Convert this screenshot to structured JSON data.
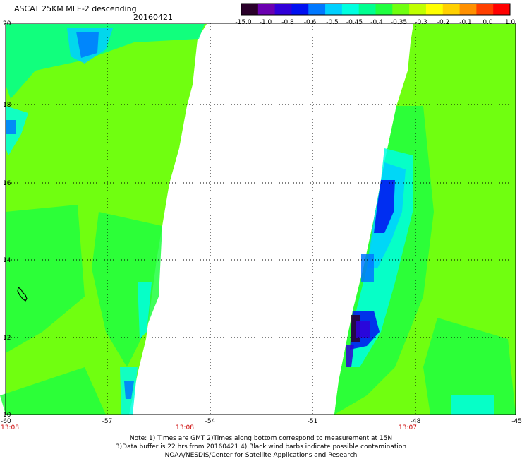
{
  "header": {
    "title": "ASCAT 25KM MLE-2 descending",
    "date": "20160421"
  },
  "colorbar": {
    "labels": [
      "-15.0",
      "-1.0",
      "-0.8",
      "-0.6",
      "-0.5",
      "-0.45",
      "-0.4",
      "-0.35",
      "-0.3",
      "-0.2",
      "-0.1",
      "0.0",
      "1.0"
    ],
    "colors": [
      "#2a002a",
      "#6a00b0",
      "#3000d8",
      "#0010f0",
      "#0078ff",
      "#00d0ff",
      "#00ffe0",
      "#00ff90",
      "#20ff40",
      "#70ff10",
      "#c0ff00",
      "#ffff00",
      "#ffd000",
      "#ff9000",
      "#ff4000",
      "#ff0000"
    ]
  },
  "map": {
    "lat_labels": [
      "20",
      "18",
      "16",
      "14",
      "12",
      "10"
    ],
    "lon_labels": [
      "-60",
      "-57",
      "-54",
      "-51",
      "-48",
      "-45"
    ],
    "time_labels": [
      "13:08",
      "13:08",
      "13:07"
    ],
    "time_color": "#cc0000",
    "swath_color": "#70ff10"
  },
  "notes": {
    "line1": "Note: 1) Times are GMT 2)Times along bottom correspond to measurement at 15N",
    "line2": "3)Data buffer is 22 hrs from 20160421 4) Black wind barbs indicate possible contamination",
    "line3": "NOAA/NESDIS/Center for Satellite Applications and Research"
  }
}
